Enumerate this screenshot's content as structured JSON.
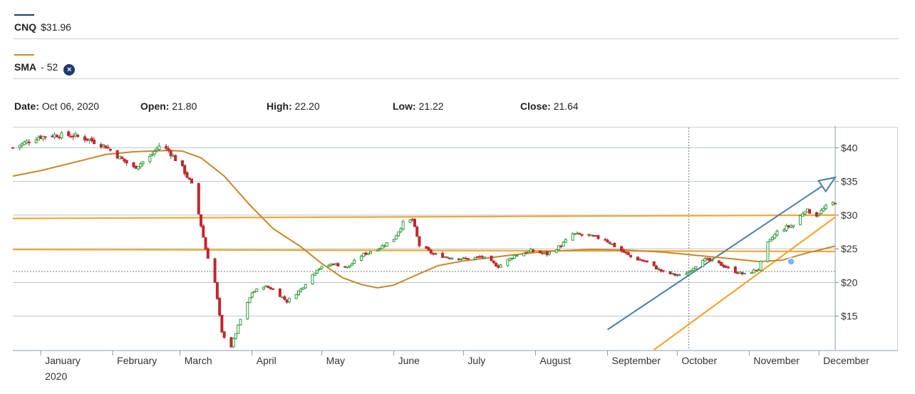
{
  "symbol": {
    "name": "CNQ",
    "price": "$31.96",
    "color": "#1f3a6b"
  },
  "indicator": {
    "name": "SMA",
    "period": "52",
    "color": "#c8862a",
    "remove_icon": "close-circle-icon"
  },
  "ohlc": {
    "date_label": "Date:",
    "date": "Oct 06, 2020",
    "open_label": "Open:",
    "open": "21.80",
    "high_label": "High:",
    "high": "22.20",
    "low_label": "Low:",
    "low": "21.22",
    "close_label": "Close:",
    "close": "21.64"
  },
  "chart_data": {
    "type": "candlestick",
    "ylim": [
      10,
      43
    ],
    "y_ticks": [
      {
        "value": 40,
        "label": "$40"
      },
      {
        "value": 35,
        "label": "$35"
      },
      {
        "value": 30,
        "label": "$30"
      },
      {
        "value": 25,
        "label": "$25"
      },
      {
        "value": 20,
        "label": "$20"
      },
      {
        "value": 15,
        "label": "$15"
      }
    ],
    "x_domain": [
      "2019-12-20",
      "2020-12-08"
    ],
    "month_ticks": [
      {
        "date": "2020-01-01",
        "label": "January",
        "sublabel": "2020"
      },
      {
        "date": "2020-02-01",
        "label": "February"
      },
      {
        "date": "2020-03-01",
        "label": "March"
      },
      {
        "date": "2020-04-01",
        "label": "April"
      },
      {
        "date": "2020-05-01",
        "label": "May"
      },
      {
        "date": "2020-06-01",
        "label": "June"
      },
      {
        "date": "2020-07-01",
        "label": "July"
      },
      {
        "date": "2020-08-01",
        "label": "August"
      },
      {
        "date": "2020-09-01",
        "label": "September"
      },
      {
        "date": "2020-10-01",
        "label": "October"
      },
      {
        "date": "2020-11-01",
        "label": "November"
      },
      {
        "date": "2020-12-01",
        "label": "December"
      }
    ],
    "crosshair": {
      "date": "2020-10-06",
      "price": 21.64
    },
    "colors": {
      "up": "#2e9e3a",
      "down": "#c0272d",
      "grid": "#b8c4d8",
      "sma": "#c8862a",
      "trend_orange": "#f0a830",
      "trend_blue": "#4a7fa8",
      "marker": "#7fb6e8"
    },
    "close_series": [
      [
        "2019-12-20",
        40.0
      ],
      [
        "2019-12-31",
        41.6
      ],
      [
        "2020-01-08",
        41.9
      ],
      [
        "2020-01-15",
        41.8
      ],
      [
        "2020-01-22",
        41.2
      ],
      [
        "2020-01-29",
        40.2
      ],
      [
        "2020-02-03",
        38.8
      ],
      [
        "2020-02-10",
        37.0
      ],
      [
        "2020-02-17",
        38.6
      ],
      [
        "2020-02-21",
        40.3
      ],
      [
        "2020-02-25",
        39.6
      ],
      [
        "2020-03-02",
        37.0
      ],
      [
        "2020-03-06",
        34.5
      ],
      [
        "2020-03-09",
        30.2
      ],
      [
        "2020-03-12",
        25.0
      ],
      [
        "2020-03-16",
        20.0
      ],
      [
        "2020-03-19",
        12.5
      ],
      [
        "2020-03-23",
        10.5
      ],
      [
        "2020-03-27",
        14.5
      ],
      [
        "2020-04-01",
        18.5
      ],
      [
        "2020-04-06",
        19.5
      ],
      [
        "2020-04-10",
        19.0
      ],
      [
        "2020-04-16",
        17.2
      ],
      [
        "2020-04-22",
        19.0
      ],
      [
        "2020-04-29",
        22.0
      ],
      [
        "2020-05-06",
        22.8
      ],
      [
        "2020-05-12",
        22.2
      ],
      [
        "2020-05-18",
        24.0
      ],
      [
        "2020-05-26",
        25.2
      ],
      [
        "2020-06-01",
        26.5
      ],
      [
        "2020-06-05",
        28.8
      ],
      [
        "2020-06-09",
        29.3
      ],
      [
        "2020-06-12",
        25.5
      ],
      [
        "2020-06-18",
        24.2
      ],
      [
        "2020-06-25",
        23.7
      ],
      [
        "2020-07-02",
        23.5
      ],
      [
        "2020-07-09",
        23.8
      ],
      [
        "2020-07-16",
        22.4
      ],
      [
        "2020-07-23",
        24.0
      ],
      [
        "2020-07-30",
        24.7
      ],
      [
        "2020-08-06",
        24.2
      ],
      [
        "2020-08-12",
        25.5
      ],
      [
        "2020-08-17",
        27.2
      ],
      [
        "2020-08-24",
        26.9
      ],
      [
        "2020-08-31",
        26.4
      ],
      [
        "2020-09-04",
        25.4
      ],
      [
        "2020-09-11",
        23.8
      ],
      [
        "2020-09-18",
        23.0
      ],
      [
        "2020-09-25",
        21.5
      ],
      [
        "2020-10-02",
        21.0
      ],
      [
        "2020-10-06",
        21.64
      ],
      [
        "2020-10-12",
        23.5
      ],
      [
        "2020-10-19",
        22.8
      ],
      [
        "2020-10-26",
        21.6
      ],
      [
        "2020-10-30",
        21.2
      ],
      [
        "2020-11-05",
        22.0
      ],
      [
        "2020-11-09",
        25.8
      ],
      [
        "2020-11-13",
        27.5
      ],
      [
        "2020-11-17",
        28.2
      ],
      [
        "2020-11-20",
        28.5
      ],
      [
        "2020-11-25",
        30.8
      ],
      [
        "2020-11-30",
        30.0
      ],
      [
        "2020-12-04",
        31.2
      ],
      [
        "2020-12-08",
        31.96
      ]
    ],
    "sma_series": [
      [
        "2019-12-20",
        35.8
      ],
      [
        "2020-01-01",
        36.6
      ],
      [
        "2020-01-15",
        37.8
      ],
      [
        "2020-01-29",
        39.0
      ],
      [
        "2020-02-10",
        39.4
      ],
      [
        "2020-02-25",
        39.6
      ],
      [
        "2020-03-02",
        39.5
      ],
      [
        "2020-03-10",
        38.5
      ],
      [
        "2020-03-20",
        35.8
      ],
      [
        "2020-03-31",
        31.5
      ],
      [
        "2020-04-10",
        28.0
      ],
      [
        "2020-04-22",
        25.3
      ],
      [
        "2020-05-01",
        22.8
      ],
      [
        "2020-05-10",
        20.7
      ],
      [
        "2020-05-18",
        19.7
      ],
      [
        "2020-05-25",
        19.2
      ],
      [
        "2020-06-01",
        19.6
      ],
      [
        "2020-06-10",
        21.0
      ],
      [
        "2020-06-20",
        22.5
      ],
      [
        "2020-07-01",
        23.2
      ],
      [
        "2020-07-20",
        24.0
      ],
      [
        "2020-08-05",
        24.6
      ],
      [
        "2020-08-25",
        24.9
      ],
      [
        "2020-09-10",
        24.8
      ],
      [
        "2020-09-25",
        24.5
      ],
      [
        "2020-10-10",
        24.0
      ],
      [
        "2020-10-25",
        23.5
      ],
      [
        "2020-11-05",
        23.1
      ],
      [
        "2020-11-15",
        23.3
      ],
      [
        "2020-11-25",
        24.3
      ],
      [
        "2020-12-08",
        25.4
      ]
    ],
    "trend_lines": [
      {
        "type": "horizontal",
        "from": [
          "2019-12-20",
          29.5
        ],
        "to": [
          "2020-12-08",
          30.0
        ],
        "color": "trend_orange"
      },
      {
        "type": "horizontal",
        "from": [
          "2019-12-20",
          24.9
        ],
        "to": [
          "2020-12-08",
          24.6
        ],
        "color": "trend_orange"
      },
      {
        "type": "rising",
        "from": [
          "2020-09-21",
          10.0
        ],
        "to": [
          "2020-12-08",
          29.7
        ],
        "color": "trend_orange"
      },
      {
        "type": "channel-arrow",
        "from": [
          "2020-09-01",
          13.0
        ],
        "to": [
          "2020-12-08",
          35.6
        ],
        "color": "trend_blue"
      }
    ],
    "markers": [
      {
        "date": "2020-11-19",
        "value": 23.1
      }
    ]
  }
}
